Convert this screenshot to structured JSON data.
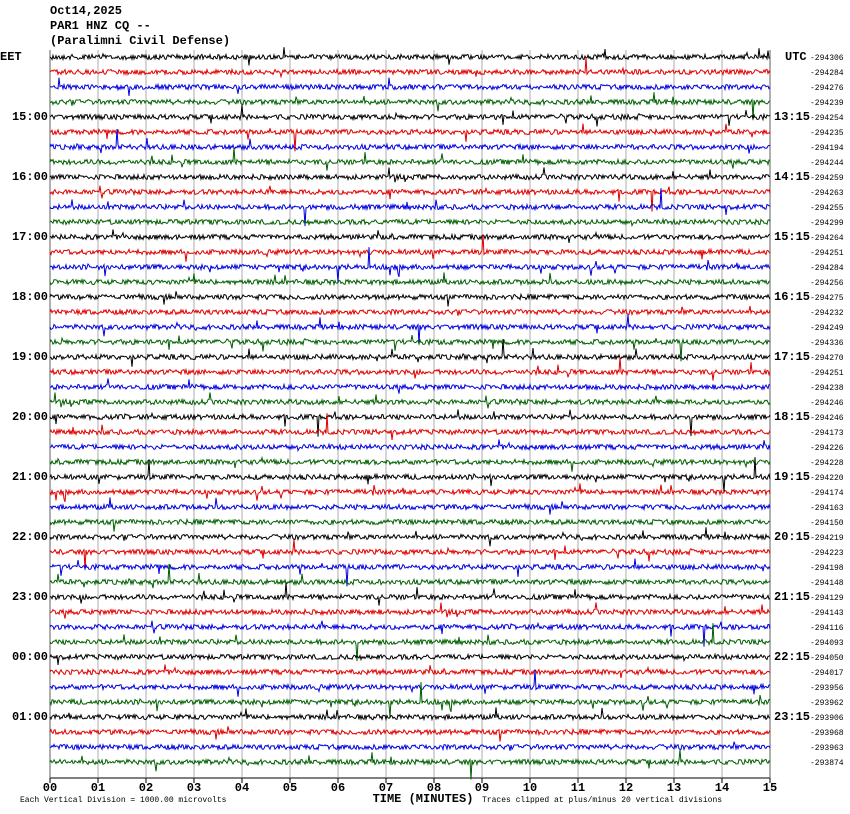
{
  "chart_data": {
    "type": "helicorder",
    "title_lines": [
      "Oct14,2025",
      "PAR1 HNZ CQ --",
      "(Paralimni Civil Defense)"
    ],
    "left_zone": "EET",
    "right_zone": "UTC",
    "left_labels": [
      "15:00",
      "16:00",
      "17:00",
      "18:00",
      "19:00",
      "20:00",
      "21:00",
      "22:00",
      "23:00",
      "00:00",
      "01:00"
    ],
    "right_labels": [
      "13:15",
      "14:15",
      "15:15",
      "16:15",
      "17:15",
      "18:15",
      "19:15",
      "20:15",
      "21:15",
      "22:15",
      "23:15"
    ],
    "trace_colors": [
      "#000000",
      "#e00000",
      "#0000e0",
      "#006000"
    ],
    "trace_offsets": [
      -294306,
      -294284,
      -294276,
      -294239,
      -294254,
      -294235,
      -294194,
      -294244,
      -294259,
      -294263,
      -294255,
      -294299,
      -294264,
      -294251,
      -294284,
      -294256,
      -294275,
      -294232,
      -294249,
      -294336,
      -294270,
      -294251,
      -294238,
      -294246,
      -294246,
      -294173,
      -294226,
      -294228,
      -294220,
      -294174,
      -294163,
      -294150,
      -294219,
      -294223,
      -294198,
      -294148,
      -294129,
      -294143,
      -294116,
      -294093,
      -294050,
      -294017,
      -293956,
      -293962,
      -293906,
      -293968,
      -293963,
      -293874
    ],
    "xlim": [
      0,
      15
    ],
    "xticks": [
      {
        "value": 0,
        "label": "00"
      },
      {
        "value": 1,
        "label": "01"
      },
      {
        "value": 2,
        "label": "02"
      },
      {
        "value": 3,
        "label": "03"
      },
      {
        "value": 4,
        "label": "04"
      },
      {
        "value": 5,
        "label": "05"
      },
      {
        "value": 6,
        "label": "06"
      },
      {
        "value": 7,
        "label": "07"
      },
      {
        "value": 8,
        "label": "08"
      },
      {
        "value": 9,
        "label": "09"
      },
      {
        "value": 10,
        "label": "10"
      },
      {
        "value": 11,
        "label": "11"
      },
      {
        "value": 12,
        "label": "12"
      },
      {
        "value": 13,
        "label": "13"
      },
      {
        "value": 14,
        "label": "14"
      },
      {
        "value": 15,
        "label": "15"
      }
    ],
    "xlabel": "TIME (MINUTES)",
    "scale_note": "Each Vertical Division = 1000.00 microvolts",
    "clip_note": "Traces clipped at plus/minus 20 vertical divisions",
    "grid": true
  }
}
